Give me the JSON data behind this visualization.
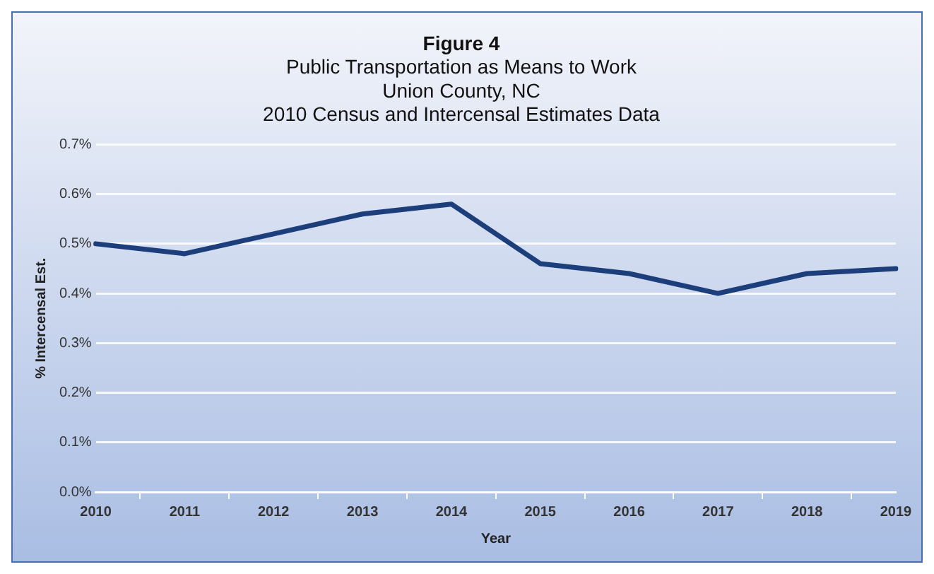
{
  "chart_data": {
    "type": "line",
    "title": "Figure 4",
    "subtitle": "Public Transportation as Means to Work\nUnion County, NC\n2010 Census and Intercensal Estimates Data",
    "xlabel": "Year",
    "ylabel": "% Intercensal Est.",
    "categories": [
      "2010",
      "2011",
      "2012",
      "2013",
      "2014",
      "2015",
      "2016",
      "2017",
      "2018",
      "2019"
    ],
    "series": [
      {
        "color": "#1c3f7c",
        "values": [
          0.5,
          0.48,
          0.52,
          0.56,
          0.58,
          0.46,
          0.44,
          0.4,
          0.44,
          0.45
        ]
      }
    ],
    "ylim": [
      0,
      0.7
    ],
    "yticks": [
      {
        "value": 0,
        "label": "0.0%"
      },
      {
        "value": 0.1,
        "label": "0.1%"
      },
      {
        "value": 0.2,
        "label": "0.2%"
      },
      {
        "value": 0.3,
        "label": "0.3%"
      },
      {
        "value": 0.4,
        "label": "0.4%"
      },
      {
        "value": 0.5,
        "label": "0.5%"
      },
      {
        "value": 0.6,
        "label": "0.6%"
      },
      {
        "value": 0.7,
        "label": "0.7%"
      }
    ],
    "grid": "y",
    "legend": false,
    "marker": "none",
    "line_style": "solid"
  }
}
